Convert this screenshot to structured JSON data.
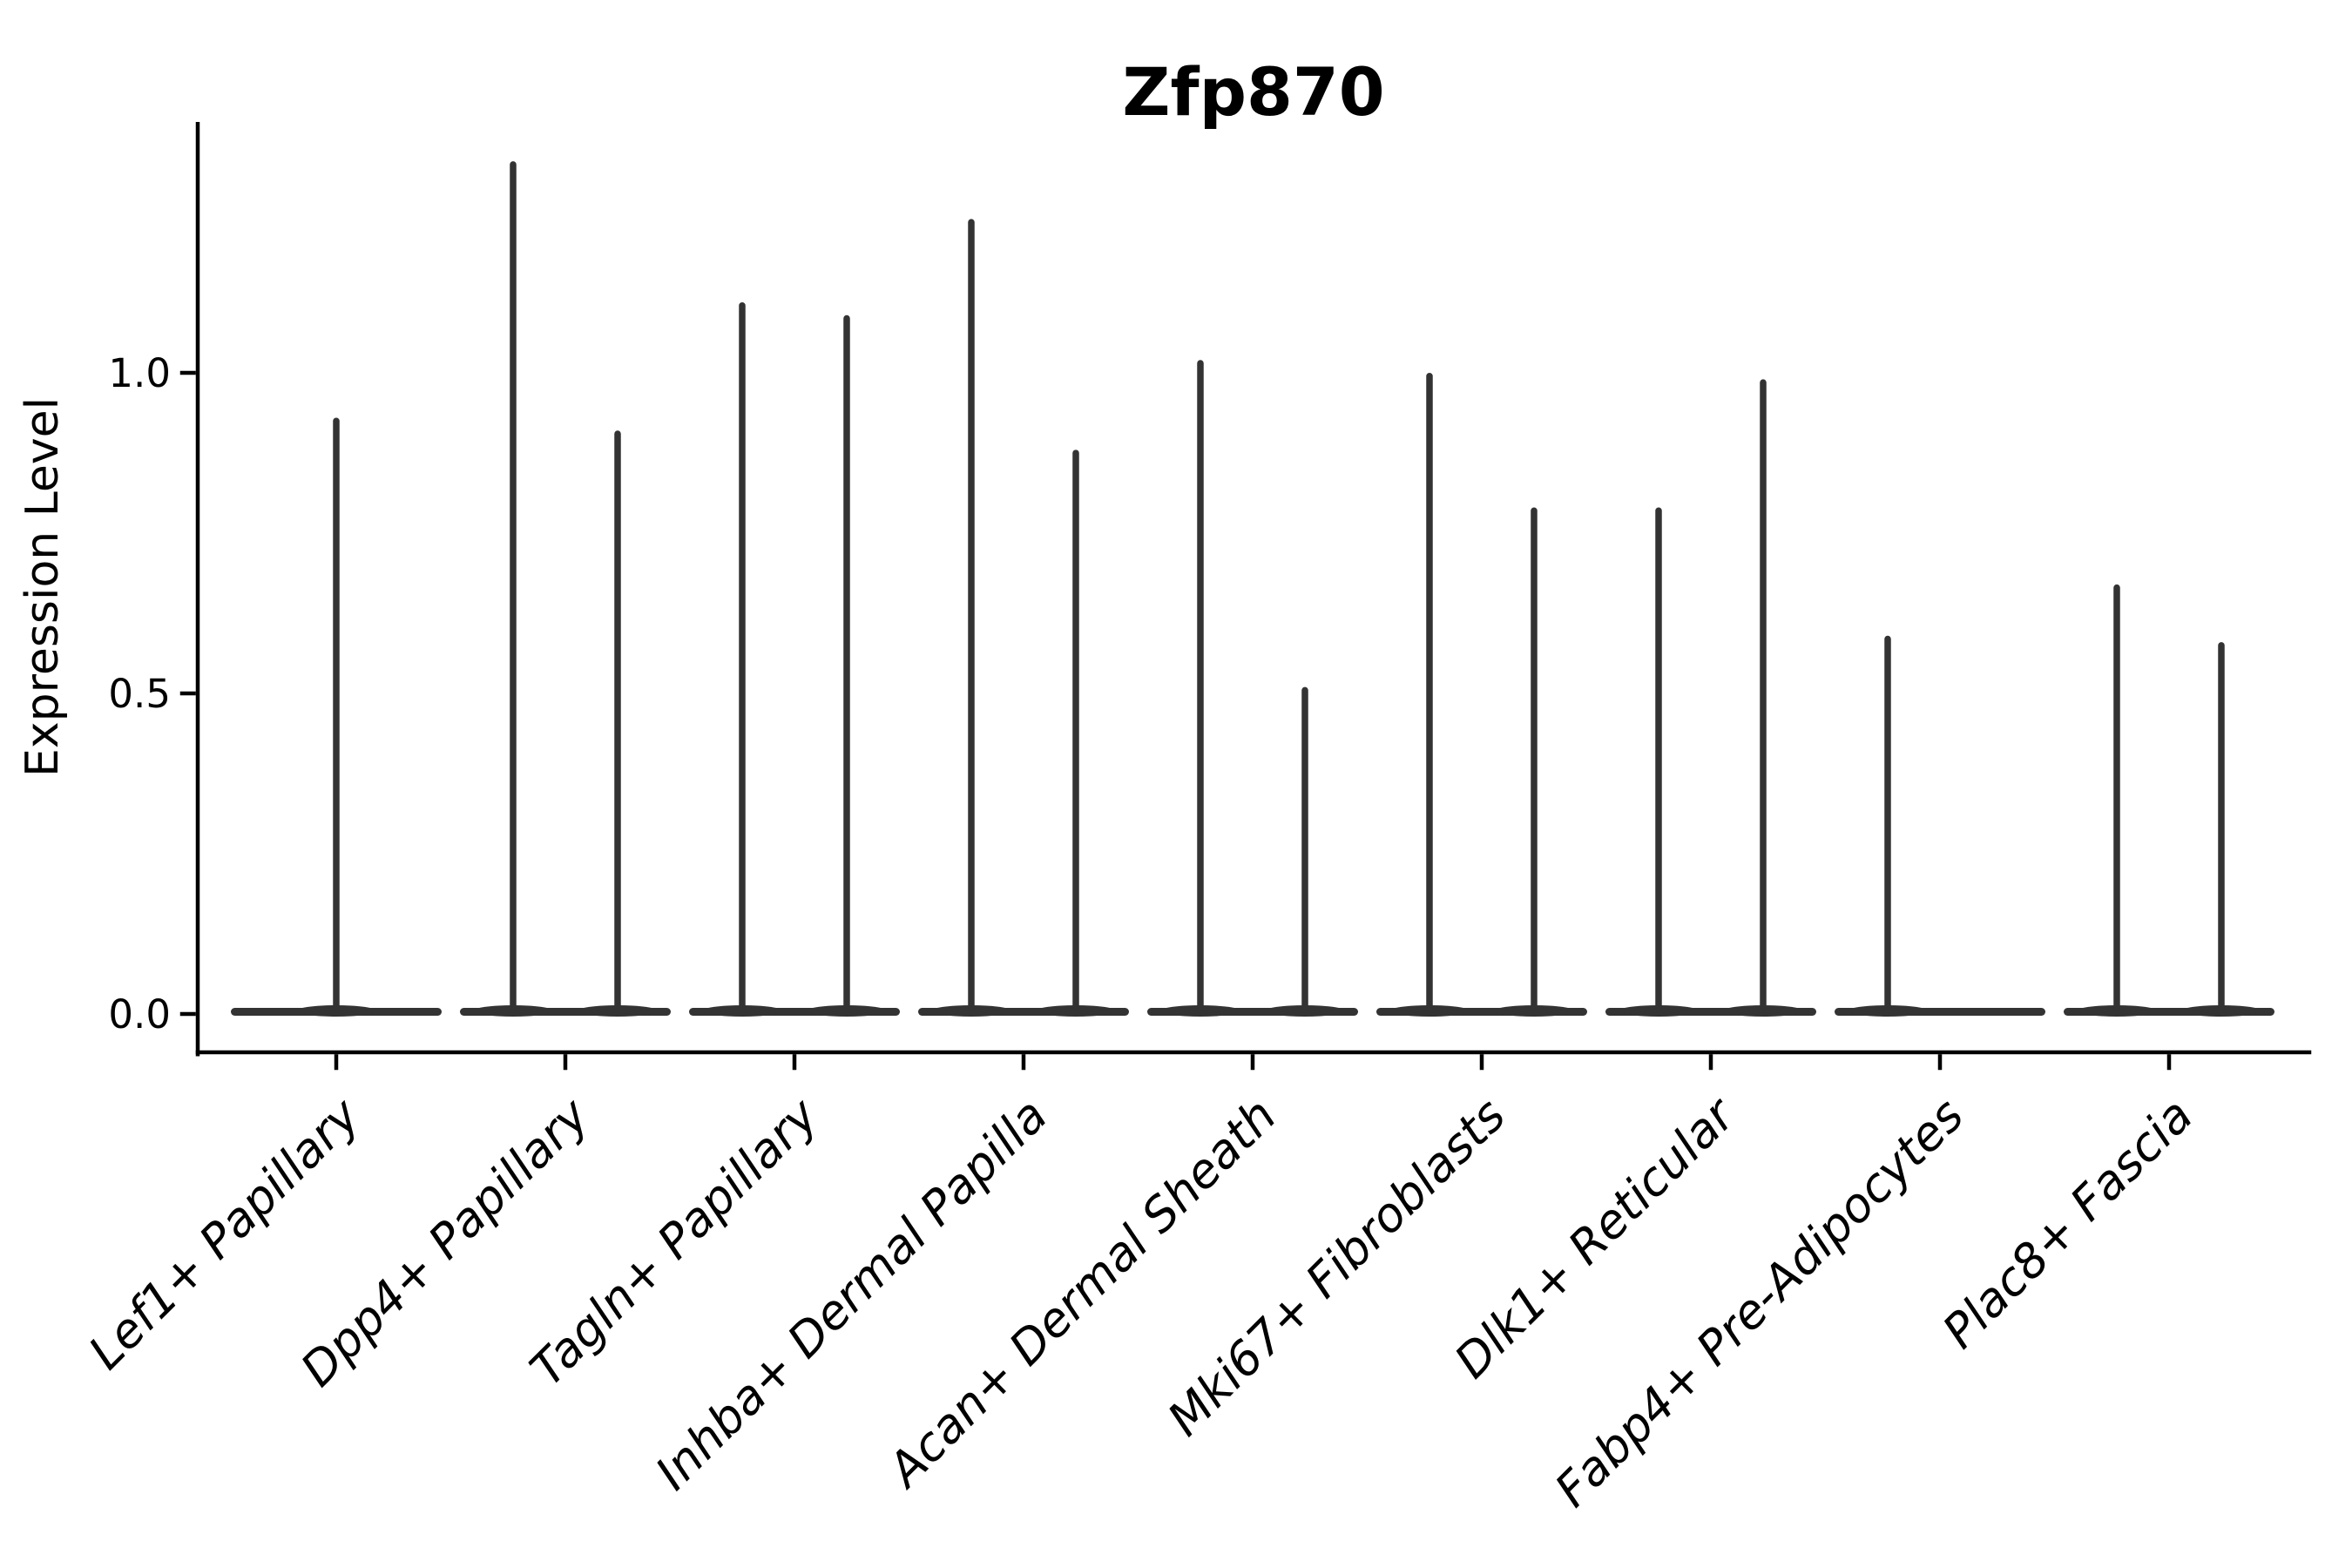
{
  "page": {
    "background": "#ffffff"
  },
  "chart_data": {
    "type": "violin",
    "title": "Zfp870",
    "ylabel": "Expression Level",
    "xlabel": "",
    "yticks": [
      0.0,
      0.5,
      1.0
    ],
    "ylim": [
      -0.06,
      1.39
    ],
    "grid": false,
    "legend": "none",
    "violin_color": "#333333",
    "axis_color": "#000000",
    "x_label_rotation_deg": 45,
    "x_label_style": "italic",
    "categories": [
      "Lef1+ Papillary",
      "Dpp4+ Papillary",
      "Tagln+ Papillary",
      "Inhba+ Dermal Papilla",
      "Acan+ Dermal Sheath",
      "Mki67+ Fibroblasts",
      "Dlk1+ Reticular",
      "Fabp4+ Pre-Adipocytes",
      "Plac8+ Fascia"
    ],
    "series": [
      {
        "category": "Lef1+ Papillary",
        "violins": [
          {
            "position": "center",
            "baseline": 0.0,
            "max_expression": 0.93
          }
        ]
      },
      {
        "category": "Dpp4+ Papillary",
        "violins": [
          {
            "position": "left",
            "baseline": 0.0,
            "max_expression": 1.33
          },
          {
            "position": "right",
            "baseline": 0.0,
            "max_expression": 0.91
          }
        ]
      },
      {
        "category": "Tagln+ Papillary",
        "violins": [
          {
            "position": "left",
            "baseline": 0.0,
            "max_expression": 1.11
          },
          {
            "position": "right",
            "baseline": 0.0,
            "max_expression": 1.09
          }
        ]
      },
      {
        "category": "Inhba+ Dermal Papilla",
        "violins": [
          {
            "position": "left",
            "baseline": 0.0,
            "max_expression": 1.24
          },
          {
            "position": "right",
            "baseline": 0.0,
            "max_expression": 0.88
          }
        ]
      },
      {
        "category": "Acan+ Dermal Sheath",
        "violins": [
          {
            "position": "left",
            "baseline": 0.0,
            "max_expression": 1.02
          },
          {
            "position": "right",
            "baseline": 0.0,
            "max_expression": 0.51
          }
        ]
      },
      {
        "category": "Mki67+ Fibroblasts",
        "violins": [
          {
            "position": "left",
            "baseline": 0.0,
            "max_expression": 1.0
          },
          {
            "position": "right",
            "baseline": 0.0,
            "max_expression": 0.79
          }
        ]
      },
      {
        "category": "Dlk1+ Reticular",
        "violins": [
          {
            "position": "left",
            "baseline": 0.0,
            "max_expression": 0.79
          },
          {
            "position": "right",
            "baseline": 0.0,
            "max_expression": 0.99
          }
        ]
      },
      {
        "category": "Fabp4+ Pre-Adipocytes",
        "violins": [
          {
            "position": "left",
            "baseline": 0.0,
            "max_expression": 0.59
          }
        ]
      },
      {
        "category": "Plac8+ Fascia",
        "violins": [
          {
            "position": "left",
            "baseline": 0.0,
            "max_expression": 0.67
          },
          {
            "position": "right",
            "baseline": 0.0,
            "max_expression": 0.58
          }
        ]
      }
    ]
  }
}
